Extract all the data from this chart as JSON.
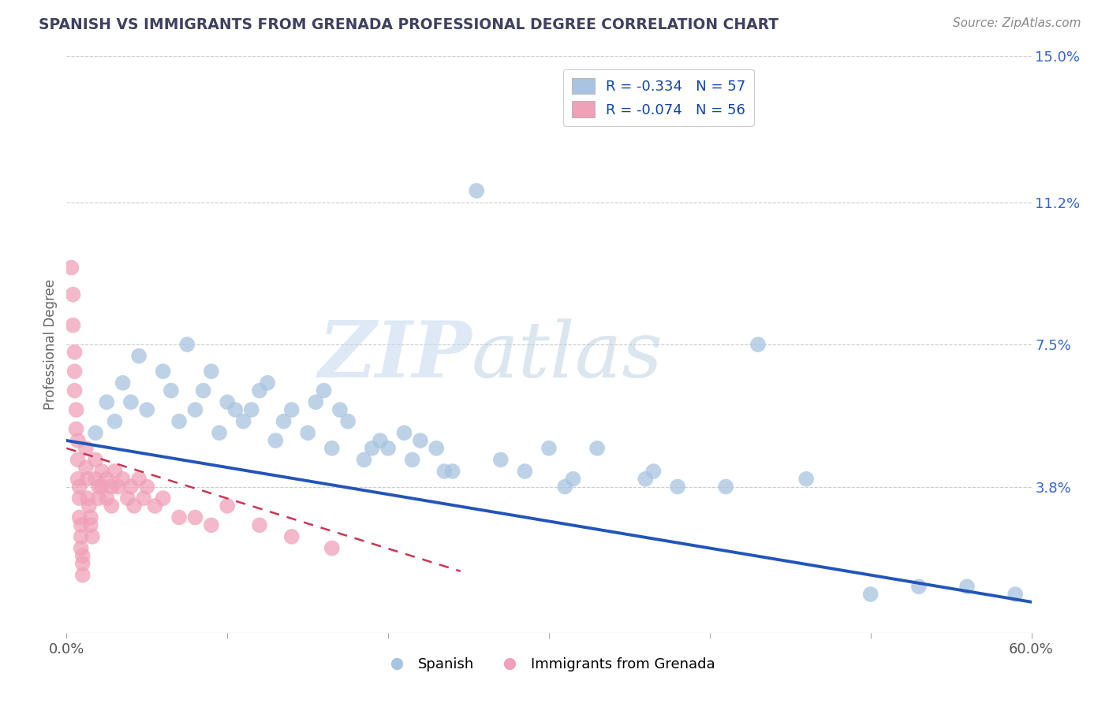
{
  "title": "SPANISH VS IMMIGRANTS FROM GRENADA PROFESSIONAL DEGREE CORRELATION CHART",
  "source": "Source: ZipAtlas.com",
  "ylabel": "Professional Degree",
  "xlim": [
    0.0,
    0.6
  ],
  "ylim": [
    0.0,
    0.15
  ],
  "ytick_positions": [
    0.0,
    0.038,
    0.075,
    0.112,
    0.15
  ],
  "ytick_labels": [
    "",
    "3.8%",
    "7.5%",
    "11.2%",
    "15.0%"
  ],
  "grid_yticks": [
    0.038,
    0.075,
    0.112,
    0.15
  ],
  "legend_entry_blue": "R = -0.334   N = 57",
  "legend_entry_pink": "R = -0.074   N = 56",
  "bottom_legend_1": "Spanish",
  "bottom_legend_2": "Immigrants from Grenada",
  "watermark_zip": "ZIP",
  "watermark_atlas": "atlas",
  "blue_scatter_color": "#a8c4e0",
  "pink_scatter_color": "#f0a0b8",
  "blue_line_color": "#2255bb",
  "pink_line_color": "#cc3355",
  "title_color": "#404060",
  "source_color": "#888888",
  "axis_color": "#aaaaaa",
  "right_tick_color": "#3366cc",
  "blue_scatter": [
    [
      0.018,
      0.052
    ],
    [
      0.025,
      0.06
    ],
    [
      0.03,
      0.055
    ],
    [
      0.035,
      0.065
    ],
    [
      0.04,
      0.06
    ],
    [
      0.045,
      0.072
    ],
    [
      0.05,
      0.058
    ],
    [
      0.06,
      0.068
    ],
    [
      0.065,
      0.063
    ],
    [
      0.07,
      0.055
    ],
    [
      0.075,
      0.075
    ],
    [
      0.08,
      0.058
    ],
    [
      0.085,
      0.063
    ],
    [
      0.09,
      0.068
    ],
    [
      0.095,
      0.052
    ],
    [
      0.1,
      0.06
    ],
    [
      0.105,
      0.058
    ],
    [
      0.11,
      0.055
    ],
    [
      0.115,
      0.058
    ],
    [
      0.12,
      0.063
    ],
    [
      0.125,
      0.065
    ],
    [
      0.13,
      0.05
    ],
    [
      0.135,
      0.055
    ],
    [
      0.14,
      0.058
    ],
    [
      0.15,
      0.052
    ],
    [
      0.155,
      0.06
    ],
    [
      0.16,
      0.063
    ],
    [
      0.165,
      0.048
    ],
    [
      0.17,
      0.058
    ],
    [
      0.175,
      0.055
    ],
    [
      0.185,
      0.045
    ],
    [
      0.19,
      0.048
    ],
    [
      0.195,
      0.05
    ],
    [
      0.2,
      0.048
    ],
    [
      0.21,
      0.052
    ],
    [
      0.215,
      0.045
    ],
    [
      0.22,
      0.05
    ],
    [
      0.23,
      0.048
    ],
    [
      0.235,
      0.042
    ],
    [
      0.24,
      0.042
    ],
    [
      0.255,
      0.115
    ],
    [
      0.27,
      0.045
    ],
    [
      0.285,
      0.042
    ],
    [
      0.3,
      0.048
    ],
    [
      0.31,
      0.038
    ],
    [
      0.315,
      0.04
    ],
    [
      0.33,
      0.048
    ],
    [
      0.36,
      0.04
    ],
    [
      0.365,
      0.042
    ],
    [
      0.38,
      0.038
    ],
    [
      0.41,
      0.038
    ],
    [
      0.43,
      0.075
    ],
    [
      0.46,
      0.04
    ],
    [
      0.5,
      0.01
    ],
    [
      0.53,
      0.012
    ],
    [
      0.56,
      0.012
    ],
    [
      0.59,
      0.01
    ]
  ],
  "pink_scatter": [
    [
      0.003,
      0.095
    ],
    [
      0.004,
      0.088
    ],
    [
      0.004,
      0.08
    ],
    [
      0.005,
      0.073
    ],
    [
      0.005,
      0.068
    ],
    [
      0.005,
      0.063
    ],
    [
      0.006,
      0.058
    ],
    [
      0.006,
      0.053
    ],
    [
      0.007,
      0.05
    ],
    [
      0.007,
      0.045
    ],
    [
      0.007,
      0.04
    ],
    [
      0.008,
      0.038
    ],
    [
      0.008,
      0.035
    ],
    [
      0.008,
      0.03
    ],
    [
      0.009,
      0.028
    ],
    [
      0.009,
      0.025
    ],
    [
      0.009,
      0.022
    ],
    [
      0.01,
      0.02
    ],
    [
      0.01,
      0.018
    ],
    [
      0.01,
      0.015
    ],
    [
      0.012,
      0.048
    ],
    [
      0.012,
      0.043
    ],
    [
      0.013,
      0.04
    ],
    [
      0.013,
      0.035
    ],
    [
      0.014,
      0.033
    ],
    [
      0.015,
      0.03
    ],
    [
      0.015,
      0.028
    ],
    [
      0.016,
      0.025
    ],
    [
      0.018,
      0.045
    ],
    [
      0.018,
      0.04
    ],
    [
      0.02,
      0.038
    ],
    [
      0.02,
      0.035
    ],
    [
      0.022,
      0.042
    ],
    [
      0.022,
      0.038
    ],
    [
      0.025,
      0.04
    ],
    [
      0.025,
      0.035
    ],
    [
      0.028,
      0.038
    ],
    [
      0.028,
      0.033
    ],
    [
      0.03,
      0.042
    ],
    [
      0.032,
      0.038
    ],
    [
      0.035,
      0.04
    ],
    [
      0.038,
      0.035
    ],
    [
      0.04,
      0.038
    ],
    [
      0.042,
      0.033
    ],
    [
      0.045,
      0.04
    ],
    [
      0.048,
      0.035
    ],
    [
      0.05,
      0.038
    ],
    [
      0.055,
      0.033
    ],
    [
      0.06,
      0.035
    ],
    [
      0.07,
      0.03
    ],
    [
      0.08,
      0.03
    ],
    [
      0.09,
      0.028
    ],
    [
      0.1,
      0.033
    ],
    [
      0.12,
      0.028
    ],
    [
      0.14,
      0.025
    ],
    [
      0.165,
      0.022
    ]
  ],
  "blue_line_x": [
    0.0,
    0.6
  ],
  "blue_line_y": [
    0.05,
    0.008
  ],
  "pink_line_x": [
    0.0,
    0.245
  ],
  "pink_line_y": [
    0.048,
    0.016
  ]
}
